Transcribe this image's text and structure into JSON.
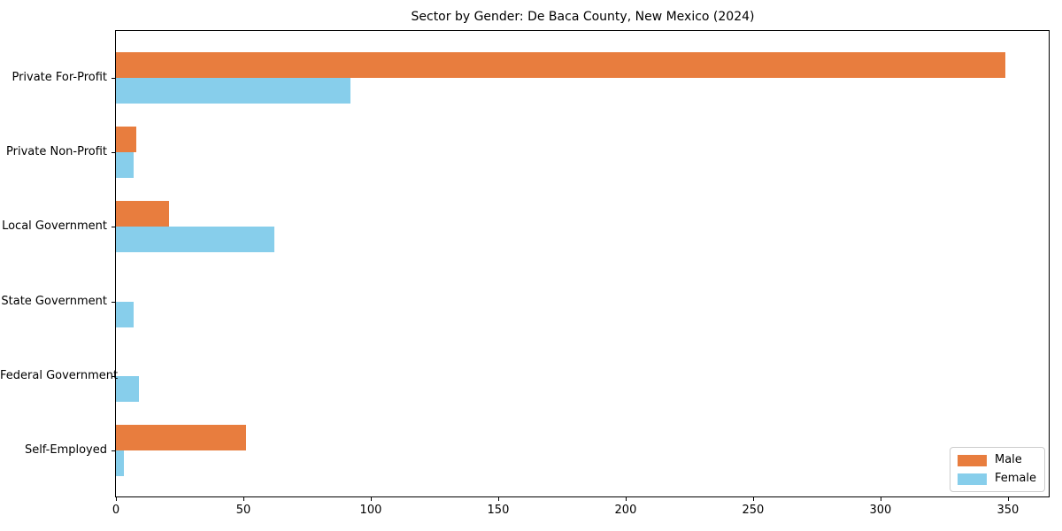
{
  "chart_data": {
    "type": "bar",
    "orientation": "horizontal",
    "title": "Sector by Gender: De Baca County, New Mexico (2024)",
    "categories": [
      "Private For-Profit",
      "Private Non-Profit",
      "Local Government",
      "State Government",
      "Federal Government",
      "Self-Employed"
    ],
    "series": [
      {
        "name": "Male",
        "color": "#e87d3e",
        "values": [
          349,
          8,
          21,
          0,
          0,
          51
        ]
      },
      {
        "name": "Female",
        "color": "#87ceeb",
        "values": [
          92,
          7,
          62,
          7,
          9,
          3
        ]
      }
    ],
    "xlabel": "",
    "ylabel": "",
    "xlim": [
      0,
      366
    ],
    "xticks": [
      0,
      50,
      100,
      150,
      200,
      250,
      300,
      350
    ],
    "grid": false,
    "legend": {
      "position": "lower right",
      "labels": [
        "Male",
        "Female"
      ]
    }
  }
}
